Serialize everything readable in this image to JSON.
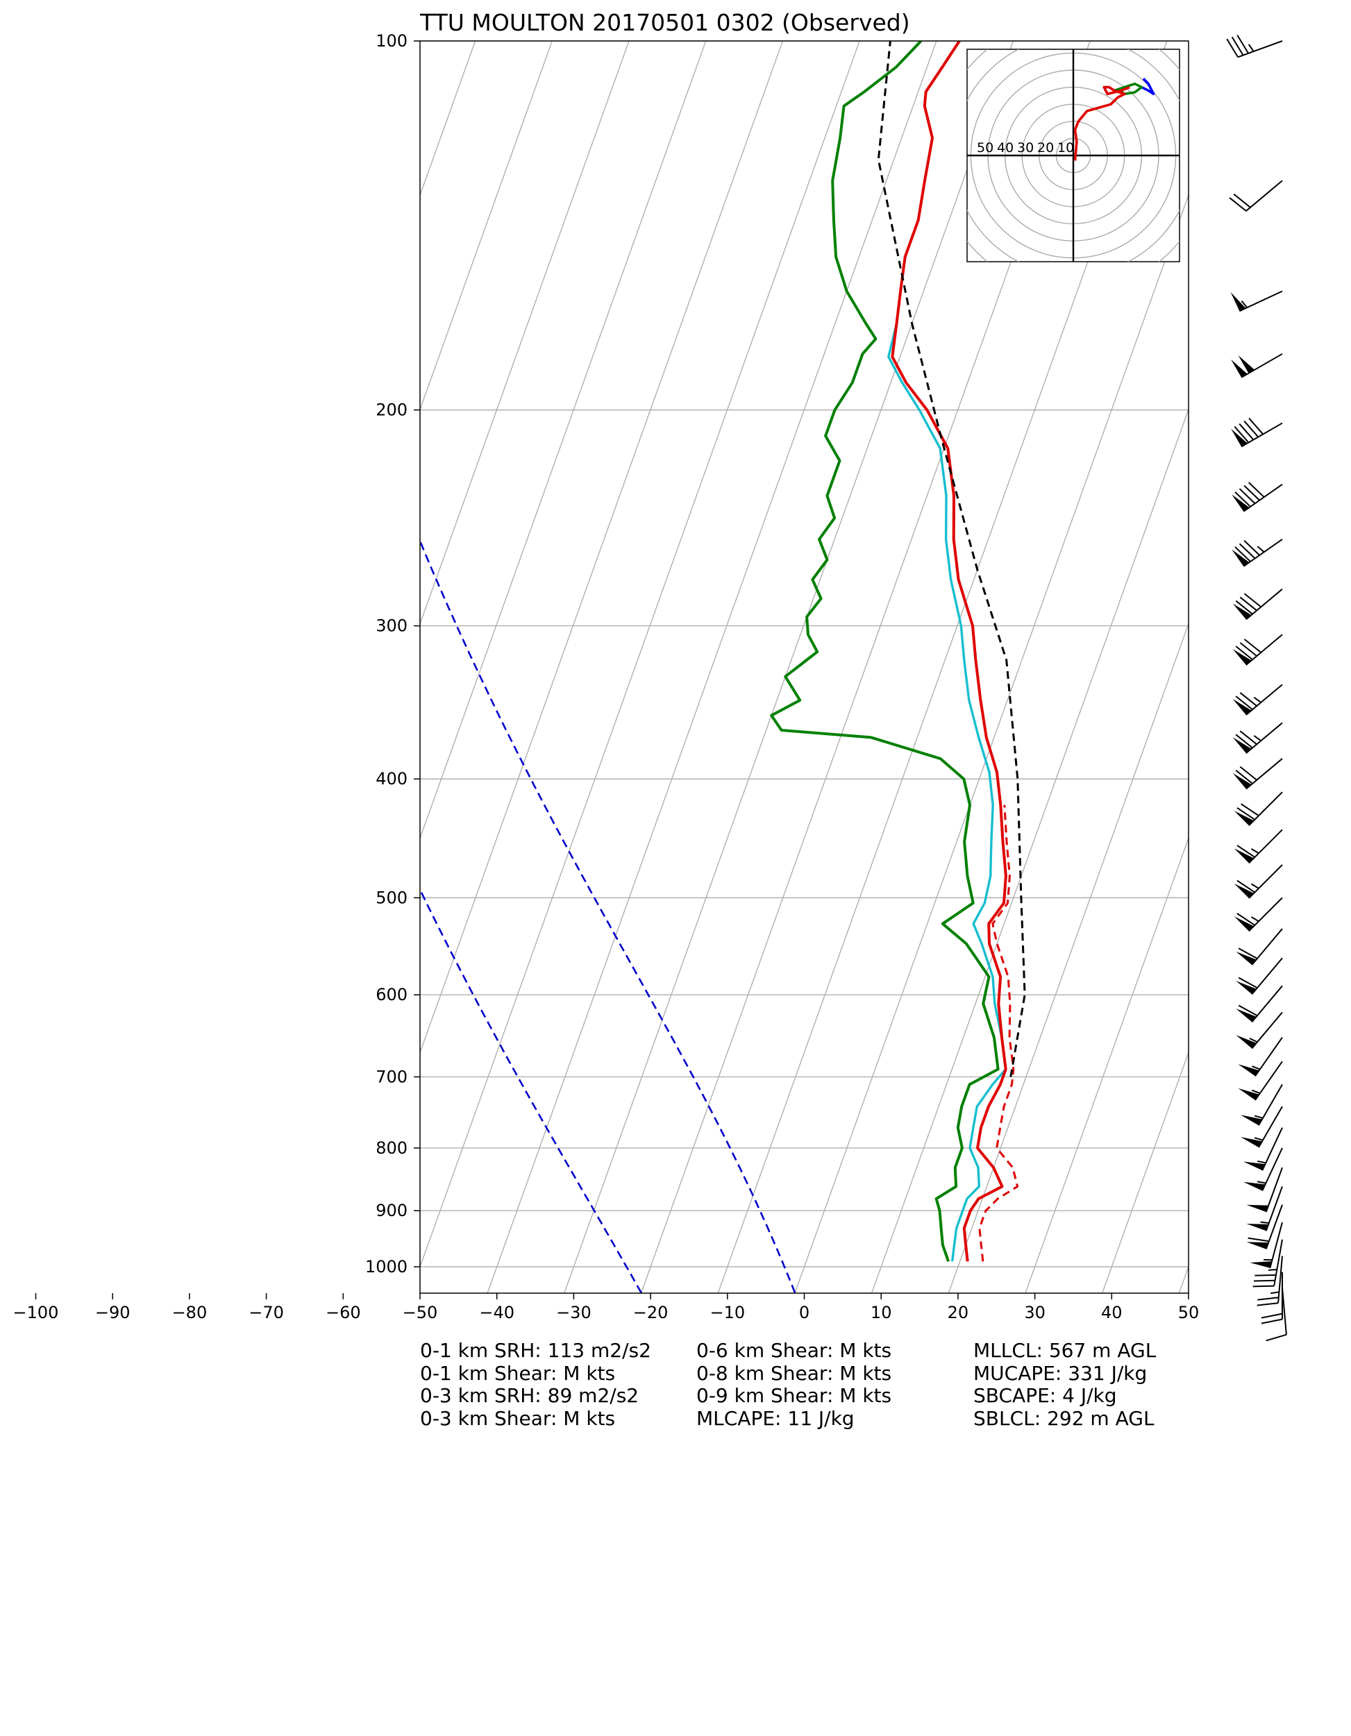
{
  "chart_data": {
    "type": "skew-t",
    "title": "TTU MOULTON 20170501 0302   (Observed)",
    "x_ticks": [
      -100,
      -90,
      -80,
      -70,
      -60,
      -50,
      -40,
      -30,
      -20,
      -10,
      0,
      10,
      20,
      30,
      40,
      50
    ],
    "xlim": [
      -50,
      50
    ],
    "p_ticks": [
      100,
      200,
      300,
      400,
      500,
      600,
      700,
      800,
      900,
      1000
    ],
    "ylim": [
      1050,
      100
    ],
    "log_scale_y": true,
    "grid": true,
    "temperature": {
      "color": "#e00000",
      "points": [
        [
          21,
          990
        ],
        [
          20,
          960
        ],
        [
          19,
          930
        ],
        [
          19,
          900
        ],
        [
          19.5,
          880
        ],
        [
          22,
          860
        ],
        [
          20,
          830
        ],
        [
          17,
          800
        ],
        [
          16.5,
          770
        ],
        [
          16.5,
          740
        ],
        [
          17,
          710
        ],
        [
          17,
          690
        ],
        [
          15,
          650
        ],
        [
          13,
          610
        ],
        [
          12,
          580
        ],
        [
          9,
          545
        ],
        [
          8,
          525
        ],
        [
          9,
          505
        ],
        [
          8,
          480
        ],
        [
          6,
          450
        ],
        [
          4,
          420
        ],
        [
          2,
          395
        ],
        [
          -1,
          370
        ],
        [
          -3.5,
          345
        ],
        [
          -6,
          320
        ],
        [
          -8,
          300
        ],
        [
          -12,
          275
        ],
        [
          -14.5,
          255
        ],
        [
          -16.5,
          235
        ],
        [
          -19.5,
          215
        ],
        [
          -24,
          200
        ],
        [
          -28,
          190
        ],
        [
          -31,
          181
        ],
        [
          -32,
          170
        ],
        [
          -33,
          160
        ],
        [
          -34,
          150
        ],
        [
          -34,
          140
        ],
        [
          -35,
          130
        ],
        [
          -36,
          120
        ],
        [
          -38.5,
          113
        ],
        [
          -39,
          110
        ],
        [
          -38,
          105
        ],
        [
          -37,
          100
        ]
      ]
    },
    "virtual_temperature": {
      "color": "#e00000",
      "style": "dashed",
      "points": [
        [
          23,
          990
        ],
        [
          22,
          960
        ],
        [
          21,
          930
        ],
        [
          21,
          900
        ],
        [
          22,
          880
        ],
        [
          24,
          860
        ],
        [
          22.5,
          830
        ],
        [
          19.5,
          800
        ],
        [
          19,
          770
        ],
        [
          18.5,
          740
        ],
        [
          18.5,
          710
        ],
        [
          18,
          690
        ],
        [
          16,
          650
        ],
        [
          14.5,
          610
        ],
        [
          13,
          580
        ],
        [
          10,
          545
        ],
        [
          8.5,
          525
        ],
        [
          9.5,
          505
        ],
        [
          8.5,
          480
        ],
        [
          6.5,
          450
        ],
        [
          4.5,
          420
        ]
      ]
    },
    "wetbulb": {
      "color": "#17becf",
      "points": [
        [
          19,
          990
        ],
        [
          18.5,
          960
        ],
        [
          18,
          930
        ],
        [
          18,
          900
        ],
        [
          18,
          880
        ],
        [
          19,
          860
        ],
        [
          18,
          830
        ],
        [
          16,
          800
        ],
        [
          15.5,
          770
        ],
        [
          15,
          740
        ],
        [
          16,
          710
        ],
        [
          17,
          690
        ],
        [
          15,
          650
        ],
        [
          12.5,
          610
        ],
        [
          11,
          580
        ],
        [
          8,
          545
        ],
        [
          6,
          525
        ],
        [
          6.5,
          505
        ],
        [
          6,
          480
        ],
        [
          4.5,
          450
        ],
        [
          3,
          420
        ],
        [
          1,
          395
        ],
        [
          -2,
          370
        ],
        [
          -5,
          345
        ],
        [
          -7.5,
          320
        ],
        [
          -9.5,
          300
        ],
        [
          -13,
          275
        ],
        [
          -15.5,
          255
        ],
        [
          -17.5,
          235
        ],
        [
          -20.5,
          215
        ],
        [
          -25,
          200
        ],
        [
          -28.5,
          190
        ],
        [
          -31.5,
          181
        ],
        [
          -32,
          170
        ],
        [
          -33,
          160
        ],
        [
          -34,
          150
        ],
        [
          -34,
          140
        ],
        [
          -35,
          130
        ],
        [
          -36,
          120
        ],
        [
          -38.5,
          113
        ],
        [
          -39,
          110
        ],
        [
          -38,
          105
        ],
        [
          -37,
          100
        ]
      ]
    },
    "dewpoint": {
      "color": "#008000",
      "points": [
        [
          18.5,
          990
        ],
        [
          17,
          960
        ],
        [
          16,
          930
        ],
        [
          15,
          900
        ],
        [
          14,
          880
        ],
        [
          16,
          860
        ],
        [
          15,
          830
        ],
        [
          15,
          800
        ],
        [
          13.5,
          770
        ],
        [
          13,
          740
        ],
        [
          13,
          710
        ],
        [
          16,
          690
        ],
        [
          14,
          650
        ],
        [
          11,
          610
        ],
        [
          10.5,
          580
        ],
        [
          6,
          545
        ],
        [
          2,
          525
        ],
        [
          5,
          505
        ],
        [
          3,
          480
        ],
        [
          1,
          450
        ],
        [
          0,
          420
        ],
        [
          -2,
          400
        ],
        [
          -6,
          385
        ],
        [
          -16,
          370
        ],
        [
          -28,
          365
        ],
        [
          -30,
          355
        ],
        [
          -27,
          345
        ],
        [
          -30,
          330
        ],
        [
          -27,
          315
        ],
        [
          -29,
          305
        ],
        [
          -30,
          295
        ],
        [
          -29,
          285
        ],
        [
          -31,
          275
        ],
        [
          -30,
          265
        ],
        [
          -32,
          255
        ],
        [
          -31,
          245
        ],
        [
          -33,
          235
        ],
        [
          -33,
          220
        ],
        [
          -36,
          210
        ],
        [
          -36,
          200
        ],
        [
          -35,
          190
        ],
        [
          -35,
          180
        ],
        [
          -34,
          175
        ],
        [
          -36,
          170
        ],
        [
          -40,
          160
        ],
        [
          -43,
          150
        ],
        [
          -45,
          140
        ],
        [
          -47,
          130
        ],
        [
          -48,
          120
        ],
        [
          -49,
          113
        ],
        [
          -47,
          110
        ],
        [
          -44,
          105
        ],
        [
          -42,
          100
        ]
      ]
    },
    "parcel_path": {
      "color": "#000000",
      "style": "dashed",
      "points": [
        [
          18,
          700
        ],
        [
          16,
          600
        ],
        [
          11,
          500
        ],
        [
          5,
          400
        ],
        [
          -2,
          320
        ],
        [
          -10,
          270
        ],
        [
          -21,
          210
        ],
        [
          -30,
          170
        ],
        [
          -42,
          125
        ],
        [
          -46,
          100
        ]
      ]
    },
    "reference_lines": [
      {
        "type": "moist",
        "start_c": 0,
        "color": "#0000cc"
      },
      {
        "type": "moist",
        "start_c": -20,
        "color": "#0000cc"
      }
    ],
    "wind_barbs": [
      {
        "p": 100,
        "speed": 35,
        "dir": 250
      },
      {
        "p": 130,
        "speed": 20,
        "dir": 230
      },
      {
        "p": 160,
        "speed": 55,
        "dir": 245
      },
      {
        "p": 180,
        "speed": 100,
        "dir": 240
      },
      {
        "p": 205,
        "speed": 90,
        "dir": 240
      },
      {
        "p": 230,
        "speed": 90,
        "dir": 235
      },
      {
        "p": 255,
        "speed": 85,
        "dir": 235
      },
      {
        "p": 280,
        "speed": 80,
        "dir": 230
      },
      {
        "p": 305,
        "speed": 80,
        "dir": 230
      },
      {
        "p": 335,
        "speed": 75,
        "dir": 230
      },
      {
        "p": 360,
        "speed": 75,
        "dir": 230
      },
      {
        "p": 385,
        "speed": 70,
        "dir": 230
      },
      {
        "p": 410,
        "speed": 70,
        "dir": 225
      },
      {
        "p": 440,
        "speed": 65,
        "dir": 225
      },
      {
        "p": 470,
        "speed": 65,
        "dir": 225
      },
      {
        "p": 500,
        "speed": 65,
        "dir": 225
      },
      {
        "p": 530,
        "speed": 60,
        "dir": 220
      },
      {
        "p": 560,
        "speed": 60,
        "dir": 220
      },
      {
        "p": 590,
        "speed": 60,
        "dir": 220
      },
      {
        "p": 620,
        "speed": 55,
        "dir": 220
      },
      {
        "p": 650,
        "speed": 55,
        "dir": 215
      },
      {
        "p": 680,
        "speed": 55,
        "dir": 215
      },
      {
        "p": 710,
        "speed": 55,
        "dir": 210
      },
      {
        "p": 740,
        "speed": 55,
        "dir": 210
      },
      {
        "p": 770,
        "speed": 55,
        "dir": 205
      },
      {
        "p": 800,
        "speed": 55,
        "dir": 205
      },
      {
        "p": 830,
        "speed": 50,
        "dir": 200
      },
      {
        "p": 860,
        "speed": 55,
        "dir": 200
      },
      {
        "p": 890,
        "speed": 60,
        "dir": 200
      },
      {
        "p": 920,
        "speed": 55,
        "dir": 195
      },
      {
        "p": 950,
        "speed": 35,
        "dir": 190
      },
      {
        "p": 980,
        "speed": 25,
        "dir": 185
      },
      {
        "p": 1010,
        "speed": 20,
        "dir": 180
      },
      {
        "p": 1040,
        "speed": 10,
        "dir": 175
      }
    ],
    "hodograph": {
      "ring_labels": [
        "50",
        "40",
        "30",
        "20",
        "10"
      ],
      "red_trace": [
        [
          1,
          -3
        ],
        [
          2,
          8
        ],
        [
          1,
          15
        ],
        [
          3,
          20
        ],
        [
          8,
          26
        ],
        [
          15,
          28
        ],
        [
          22,
          30
        ],
        [
          26,
          34
        ],
        [
          30,
          36
        ],
        [
          24,
          38
        ],
        [
          21,
          40
        ],
        [
          18,
          40
        ],
        [
          20,
          36
        ],
        [
          28,
          38
        ],
        [
          33,
          40
        ]
      ],
      "green_trace": [
        [
          24,
          38
        ],
        [
          30,
          40
        ],
        [
          36,
          42
        ],
        [
          40,
          40
        ],
        [
          36,
          37
        ],
        [
          30,
          36
        ],
        [
          26,
          39
        ]
      ],
      "blue_trace": [
        [
          40,
          40
        ],
        [
          44,
          38
        ],
        [
          47,
          36
        ],
        [
          44,
          42
        ],
        [
          41,
          45
        ]
      ]
    }
  },
  "stats": {
    "col1": [
      "0-1 km SRH: 113 m2/s2",
      "0-1 km Shear: M kts",
      "0-3 km SRH: 89 m2/s2",
      "0-3 km Shear: M kts"
    ],
    "col2": [
      "0-6 km Shear: M kts",
      "0-8 km Shear: M kts",
      "0-9 km Shear: M kts",
      "MLCAPE: 11 J/kg"
    ],
    "col3": [
      "MLLCL: 567 m AGL",
      "MUCAPE: 331 J/kg",
      "SBCAPE: 4 J/kg",
      "SBLCL: 292 m AGL"
    ]
  }
}
